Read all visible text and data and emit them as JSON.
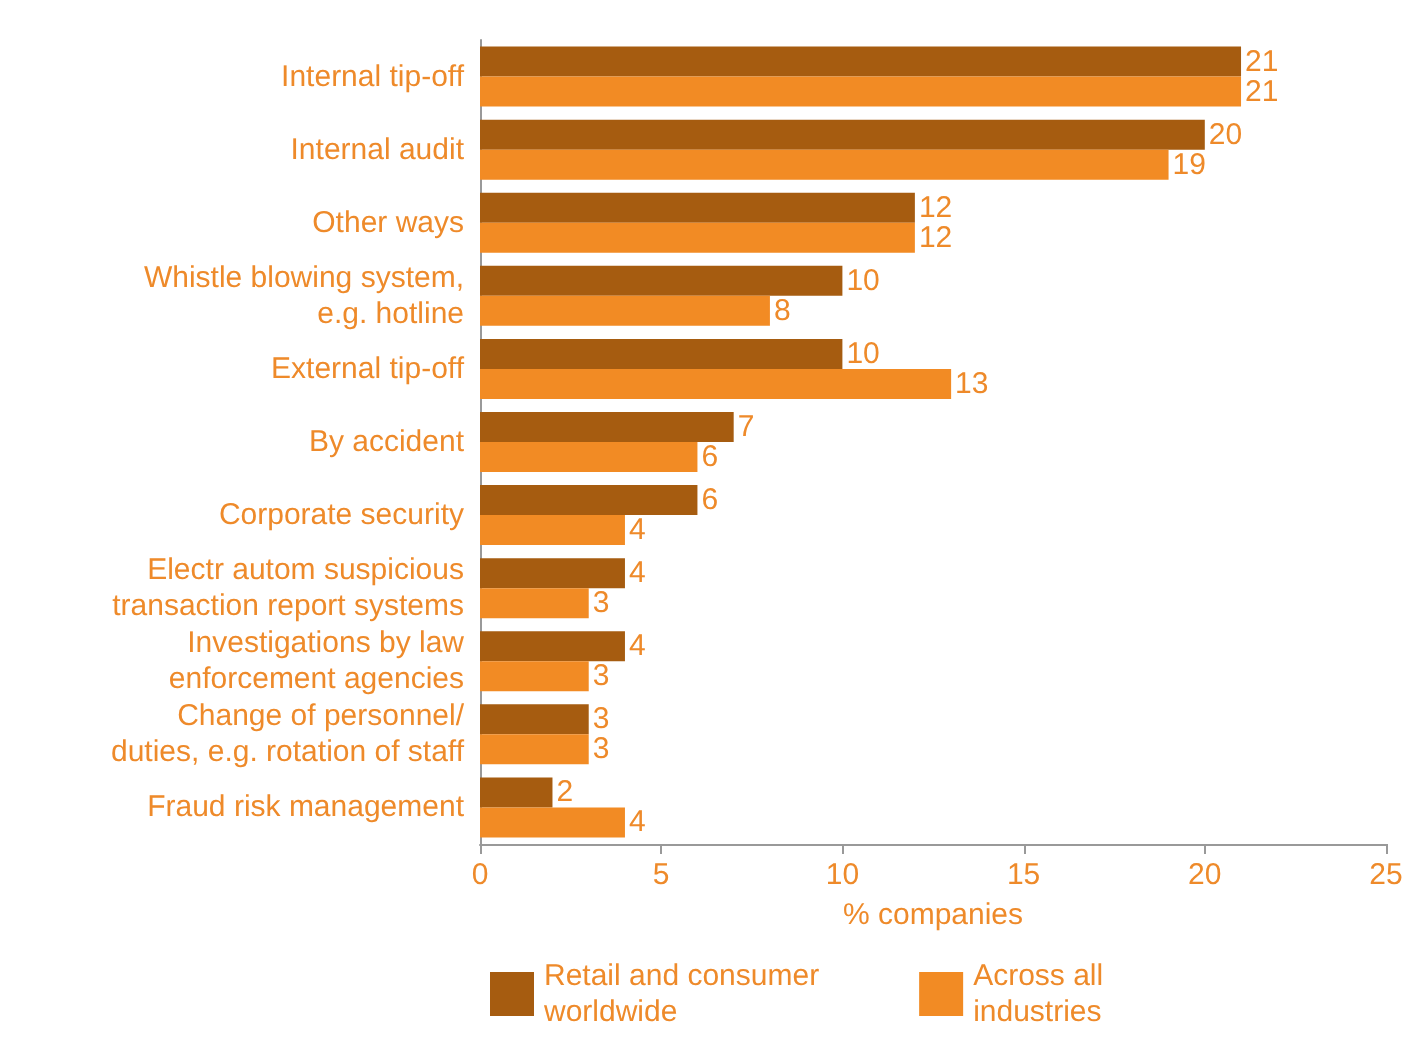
{
  "chart_data": {
    "type": "bar",
    "orientation": "horizontal",
    "xlabel": "% companies",
    "categories": [
      "Internal tip-off",
      "Internal audit",
      "Other ways",
      "Whistle blowing system,\ne.g. hotline",
      "External tip-off",
      "By accident",
      "Corporate security",
      "Electr autom suspicious\ntransaction report systems",
      "Investigations by law\nenforcement agencies",
      "Change of personnel/\nduties, e.g. rotation of staff",
      "Fraud risk management"
    ],
    "series": [
      {
        "name": "Retail and consumer\nworldwide",
        "color": "#a65c10",
        "values": [
          21,
          20,
          12,
          10,
          10,
          7,
          6,
          4,
          4,
          3,
          2
        ]
      },
      {
        "name": "Across all\nindustries",
        "color": "#f28b24",
        "values": [
          21,
          19,
          12,
          8,
          13,
          6,
          4,
          3,
          3,
          3,
          4
        ]
      }
    ],
    "xlim": [
      0,
      25
    ],
    "xticks": [
      0,
      5,
      10,
      15,
      20,
      25
    ],
    "grid": false,
    "legend": "bottom",
    "data_labels": true
  }
}
